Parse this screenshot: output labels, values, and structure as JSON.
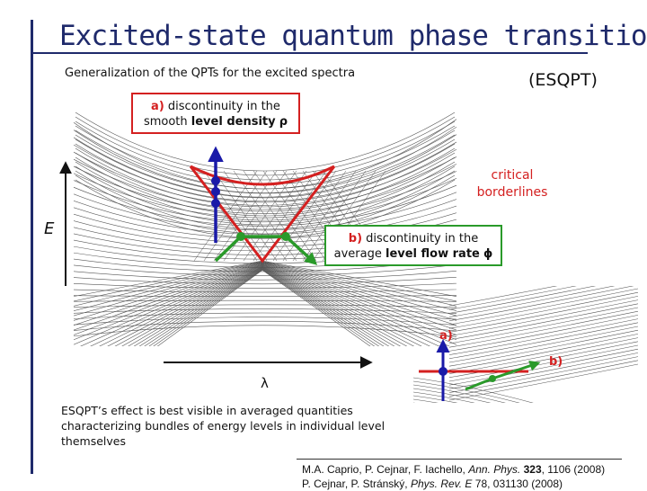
{
  "title": "Excited-state quantum phase transition",
  "subtitle": "Generalization of the QPTs for the excited spectra",
  "abbreviation": "(ESQPT)",
  "box_a": {
    "tag": "a)",
    "text_line1": "discontinuity in the",
    "text_line2_plain": "smooth",
    "text_line2_bold": "level density",
    "symbol": "ρ"
  },
  "box_b": {
    "tag": "b)",
    "text_line1": "discontinuity in the",
    "text_line2_plain": "average",
    "text_line2_bold": "level flow rate",
    "symbol": "ϕ"
  },
  "critical_label": "critical borderlines",
  "axis_energy": "E",
  "axis_parameter": "λ",
  "inset_label_a": "a)",
  "inset_label_b": "b)",
  "caption": "ESQPT’s effect is best visible in averaged quantities characterizing bundles of energy levels in individual level themselves",
  "references": [
    {
      "authors": "M.A. Caprio, P. Cejnar, F. Iachello,",
      "journal": "Ann. Phys.",
      "volume": "323",
      "rest": ", 1106 (2008)"
    },
    {
      "authors": "P. Cejnar, P. Stránský,",
      "journal": "Phys. Rev. E",
      "volume": "78",
      "rest": ", 031130 (2008)"
    }
  ],
  "colors": {
    "accent": "#1f2a6b",
    "critical": "#d42020",
    "flow": "#2a9a2a",
    "arrow": "#1a1aa8"
  }
}
